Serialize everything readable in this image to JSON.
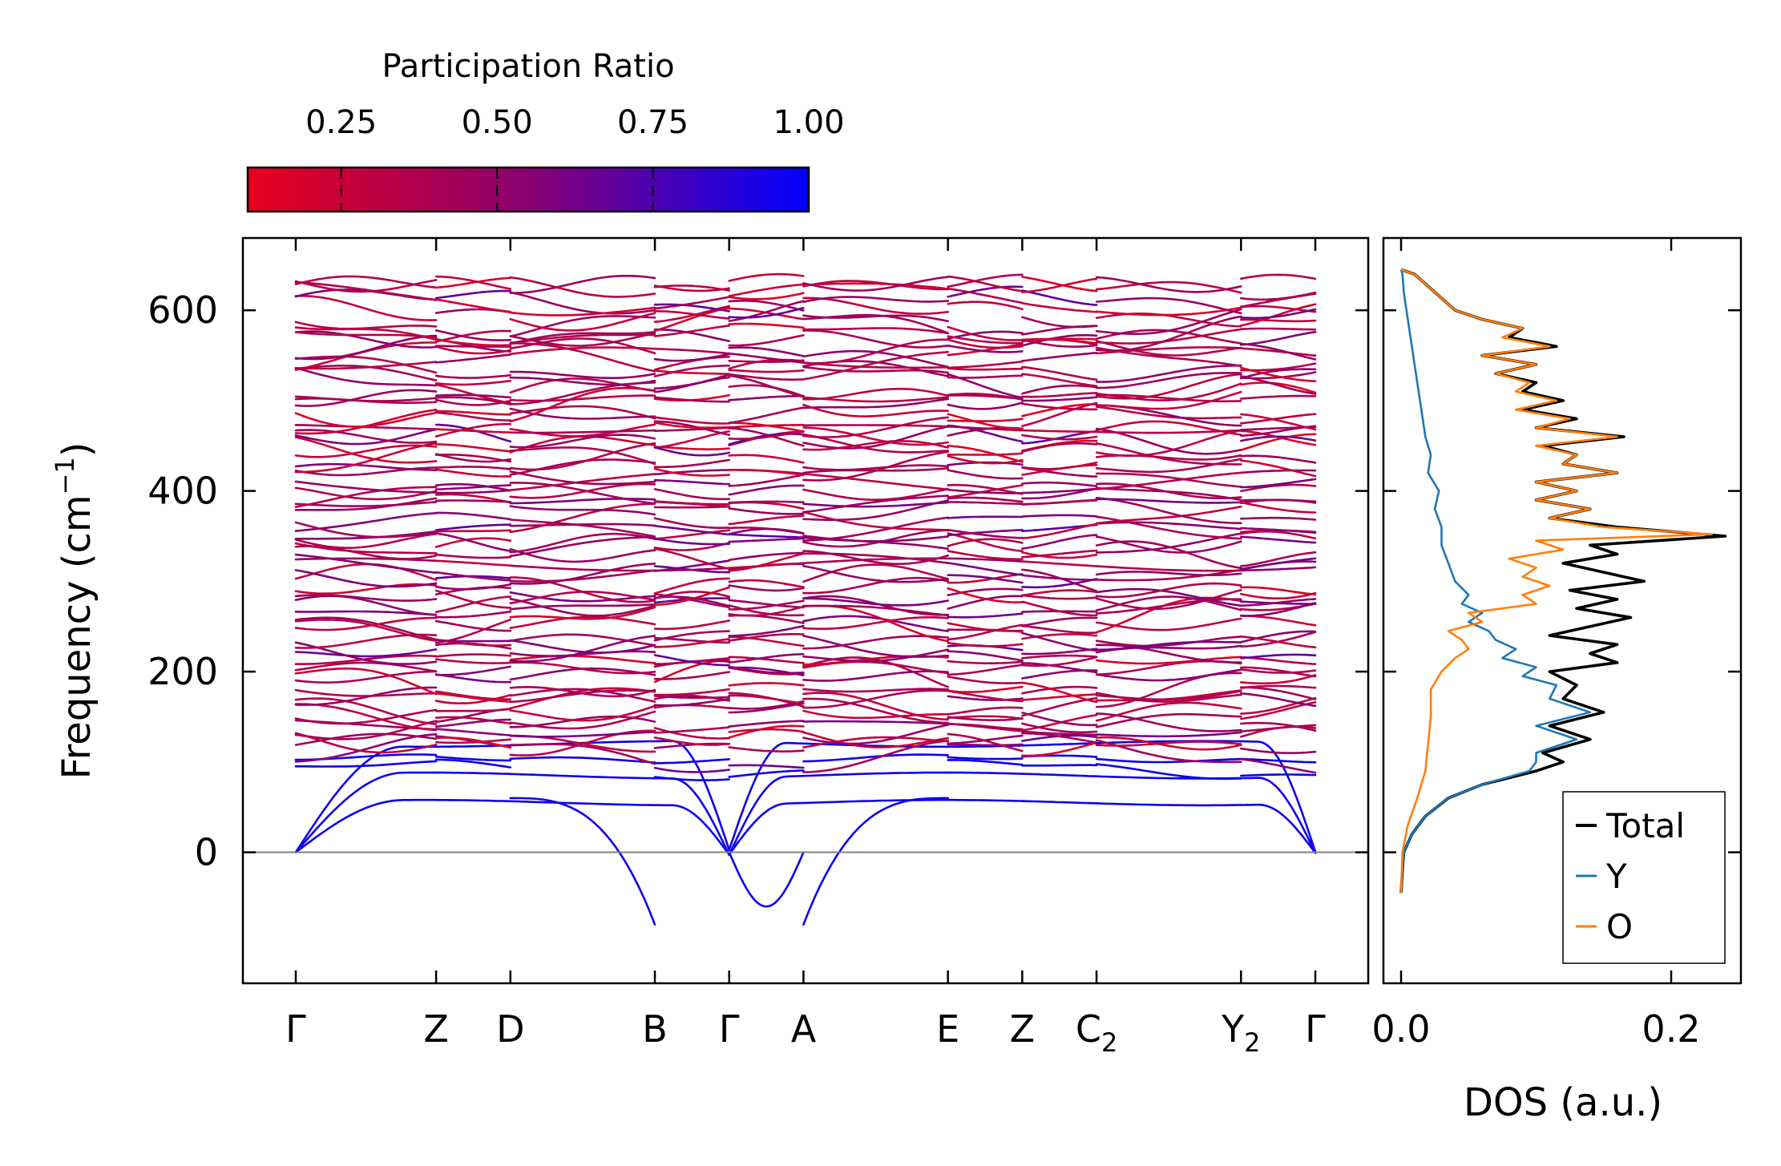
{
  "chart_data": [
    {
      "type": "line",
      "name": "phonon-band-structure",
      "ylabel_main": "Frequency (cm",
      "ylabel_sup": "−1",
      "ylabel_close": ")",
      "ylim": [
        -145,
        680
      ],
      "yticks": [
        0,
        200,
        400,
        600
      ],
      "ytick_labels": [
        "0",
        "200",
        "400",
        "600"
      ],
      "kpath_positions": [
        0,
        1.7,
        2.6,
        4.35,
        5.25,
        6.15,
        7.9,
        8.8,
        9.7,
        11.45,
        12.35
      ],
      "high_symmetry_points": [
        {
          "label": "Γ",
          "sub": ""
        },
        {
          "label": "Z",
          "sub": ""
        },
        {
          "label": "D",
          "sub": ""
        },
        {
          "label": "B",
          "sub": ""
        },
        {
          "label": "Γ",
          "sub": ""
        },
        {
          "label": "A",
          "sub": ""
        },
        {
          "label": "E",
          "sub": ""
        },
        {
          "label": "Z",
          "sub": ""
        },
        {
          "label": "C",
          "sub": "2"
        },
        {
          "label": "Y",
          "sub": "2"
        },
        {
          "label": "Γ",
          "sub": ""
        }
      ],
      "zero_line": 0,
      "colorbar": {
        "title": "Participation Ratio",
        "ticks": [
          0.25,
          0.5,
          0.75,
          1.0
        ],
        "tick_labels": [
          "0.25",
          "0.50",
          "0.75",
          "1.00"
        ],
        "range": [
          0.1,
          1.0
        ],
        "color_low": "#e8001c",
        "color_mid": "#8a0070",
        "color_high": "#0000ff"
      },
      "band_count_approx": 72,
      "band_frequency_range": [
        -110,
        640
      ]
    },
    {
      "type": "line",
      "name": "phonon-dos",
      "xlabel": "DOS (a.u.)",
      "xlim": [
        -0.015,
        0.26
      ],
      "xticks": [
        0.0,
        0.2
      ],
      "xtick_labels": [
        "0.0",
        "0.2"
      ],
      "ylim": [
        -145,
        680
      ],
      "legend_position": "lower-right",
      "series": [
        {
          "name": "Total",
          "color": "#000000",
          "points": [
            [
              -45,
              0.0
            ],
            [
              -20,
              0.001
            ],
            [
              0,
              0.002
            ],
            [
              20,
              0.008
            ],
            [
              40,
              0.018
            ],
            [
              60,
              0.035
            ],
            [
              75,
              0.06
            ],
            [
              90,
              0.1
            ],
            [
              100,
              0.12
            ],
            [
              110,
              0.105
            ],
            [
              125,
              0.14
            ],
            [
              140,
              0.11
            ],
            [
              155,
              0.15
            ],
            [
              170,
              0.12
            ],
            [
              185,
              0.13
            ],
            [
              200,
              0.11
            ],
            [
              210,
              0.16
            ],
            [
              220,
              0.14
            ],
            [
              230,
              0.16
            ],
            [
              240,
              0.11
            ],
            [
              250,
              0.14
            ],
            [
              260,
              0.17
            ],
            [
              270,
              0.13
            ],
            [
              280,
              0.16
            ],
            [
              290,
              0.125
            ],
            [
              300,
              0.18
            ],
            [
              310,
              0.15
            ],
            [
              320,
              0.12
            ],
            [
              330,
              0.16
            ],
            [
              340,
              0.14
            ],
            [
              350,
              0.24
            ],
            [
              360,
              0.16
            ],
            [
              370,
              0.11
            ],
            [
              380,
              0.14
            ],
            [
              390,
              0.1
            ],
            [
              400,
              0.13
            ],
            [
              410,
              0.1
            ],
            [
              420,
              0.16
            ],
            [
              430,
              0.12
            ],
            [
              440,
              0.13
            ],
            [
              450,
              0.105
            ],
            [
              460,
              0.165
            ],
            [
              470,
              0.1
            ],
            [
              480,
              0.13
            ],
            [
              490,
              0.09
            ],
            [
              500,
              0.12
            ],
            [
              510,
              0.09
            ],
            [
              520,
              0.1
            ],
            [
              530,
              0.07
            ],
            [
              540,
              0.1
            ],
            [
              550,
              0.06
            ],
            [
              560,
              0.115
            ],
            [
              570,
              0.08
            ],
            [
              580,
              0.09
            ],
            [
              590,
              0.06
            ],
            [
              600,
              0.04
            ],
            [
              620,
              0.025
            ],
            [
              640,
              0.01
            ],
            [
              645,
              0.0
            ]
          ]
        },
        {
          "name": "Y",
          "color": "#1f77b4",
          "points": [
            [
              -45,
              0.0
            ],
            [
              -20,
              0.001
            ],
            [
              0,
              0.002
            ],
            [
              20,
              0.008
            ],
            [
              40,
              0.018
            ],
            [
              60,
              0.035
            ],
            [
              75,
              0.06
            ],
            [
              90,
              0.095
            ],
            [
              100,
              0.1
            ],
            [
              110,
              0.1
            ],
            [
              125,
              0.13
            ],
            [
              140,
              0.1
            ],
            [
              155,
              0.14
            ],
            [
              170,
              0.11
            ],
            [
              185,
              0.115
            ],
            [
              195,
              0.09
            ],
            [
              205,
              0.1
            ],
            [
              215,
              0.075
            ],
            [
              225,
              0.085
            ],
            [
              235,
              0.07
            ],
            [
              245,
              0.065
            ],
            [
              255,
              0.05
            ],
            [
              265,
              0.06
            ],
            [
              275,
              0.045
            ],
            [
              285,
              0.05
            ],
            [
              300,
              0.04
            ],
            [
              320,
              0.035
            ],
            [
              340,
              0.03
            ],
            [
              360,
              0.03
            ],
            [
              380,
              0.025
            ],
            [
              400,
              0.028
            ],
            [
              420,
              0.02
            ],
            [
              440,
              0.022
            ],
            [
              460,
              0.018
            ],
            [
              480,
              0.016
            ],
            [
              500,
              0.014
            ],
            [
              520,
              0.012
            ],
            [
              540,
              0.01
            ],
            [
              560,
              0.008
            ],
            [
              580,
              0.006
            ],
            [
              600,
              0.004
            ],
            [
              620,
              0.002
            ],
            [
              640,
              0.001
            ],
            [
              645,
              0.0
            ]
          ]
        },
        {
          "name": "O",
          "color": "#ff7f0e",
          "points": [
            [
              -45,
              0.0
            ],
            [
              0,
              0.001
            ],
            [
              30,
              0.005
            ],
            [
              60,
              0.012
            ],
            [
              90,
              0.018
            ],
            [
              120,
              0.02
            ],
            [
              150,
              0.022
            ],
            [
              180,
              0.022
            ],
            [
              200,
              0.03
            ],
            [
              215,
              0.04
            ],
            [
              225,
              0.05
            ],
            [
              235,
              0.045
            ],
            [
              245,
              0.035
            ],
            [
              255,
              0.06
            ],
            [
              265,
              0.05
            ],
            [
              275,
              0.1
            ],
            [
              285,
              0.09
            ],
            [
              295,
              0.11
            ],
            [
              305,
              0.09
            ],
            [
              315,
              0.1
            ],
            [
              325,
              0.08
            ],
            [
              335,
              0.12
            ],
            [
              345,
              0.1
            ],
            [
              352,
              0.23
            ],
            [
              360,
              0.15
            ],
            [
              370,
              0.11
            ],
            [
              380,
              0.14
            ],
            [
              390,
              0.1
            ],
            [
              400,
              0.13
            ],
            [
              410,
              0.1
            ],
            [
              420,
              0.16
            ],
            [
              430,
              0.12
            ],
            [
              440,
              0.13
            ],
            [
              450,
              0.1
            ],
            [
              460,
              0.16
            ],
            [
              470,
              0.1
            ],
            [
              480,
              0.125
            ],
            [
              490,
              0.085
            ],
            [
              500,
              0.115
            ],
            [
              510,
              0.085
            ],
            [
              520,
              0.095
            ],
            [
              530,
              0.07
            ],
            [
              540,
              0.1
            ],
            [
              550,
              0.06
            ],
            [
              560,
              0.11
            ],
            [
              570,
              0.075
            ],
            [
              580,
              0.09
            ],
            [
              590,
              0.06
            ],
            [
              600,
              0.04
            ],
            [
              620,
              0.025
            ],
            [
              640,
              0.01
            ],
            [
              645,
              0.0
            ]
          ]
        }
      ]
    }
  ]
}
